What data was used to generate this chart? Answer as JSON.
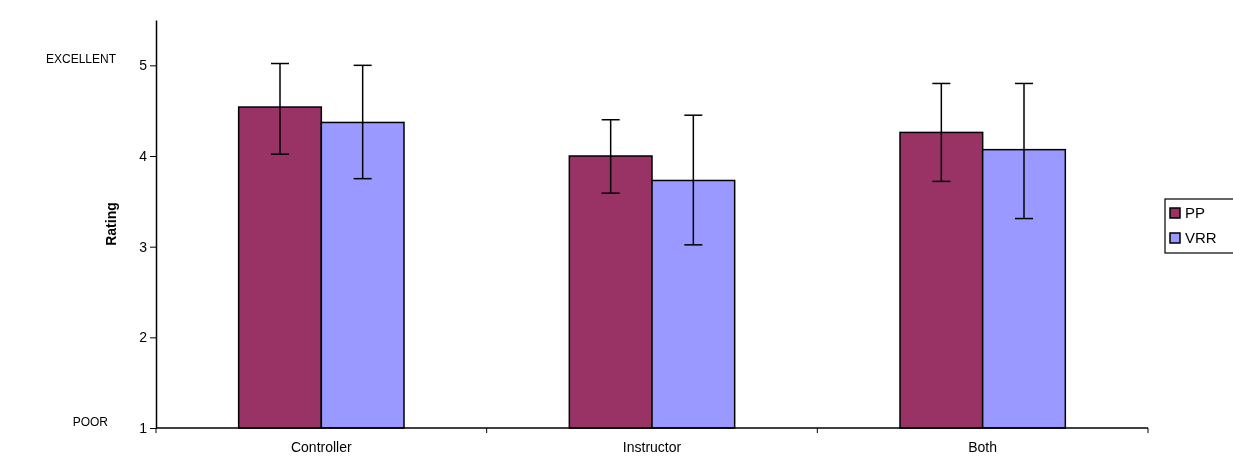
{
  "chart_data": {
    "type": "bar",
    "ylabel": "Rating",
    "categories": [
      "Controller",
      "Instructor",
      "Both"
    ],
    "series": [
      {
        "name": "PP",
        "color": "#993366",
        "values": [
          4.54,
          4.0,
          4.26
        ],
        "errors": [
          [
            4.02,
            5.02
          ],
          [
            3.59,
            4.4
          ],
          [
            3.72,
            4.8
          ]
        ]
      },
      {
        "name": "VRR",
        "color": "#9999ff",
        "values": [
          4.37,
          3.73,
          4.07
        ],
        "errors": [
          [
            3.75,
            5.0
          ],
          [
            3.02,
            4.45
          ],
          [
            3.31,
            4.8
          ]
        ]
      }
    ],
    "ylim": [
      1,
      5.5
    ],
    "yticks": [
      1,
      2,
      3,
      4,
      5
    ],
    "grid": false,
    "legend": "right",
    "annotations": [
      "EXCELLENT",
      "POOR"
    ]
  }
}
